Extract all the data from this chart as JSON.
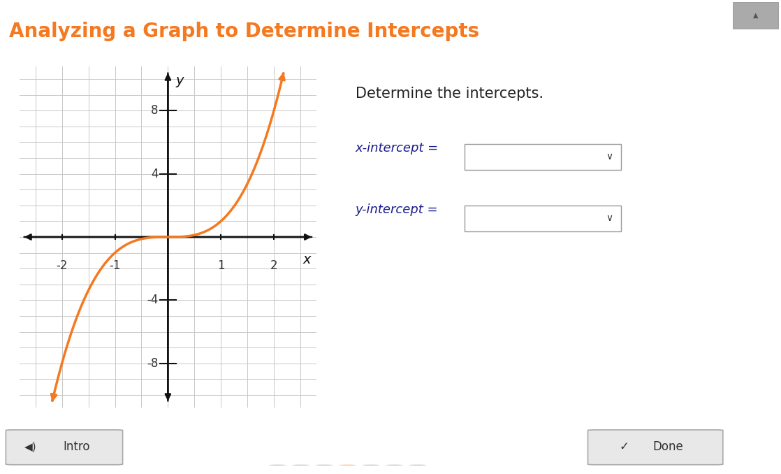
{
  "title": "Analyzing a Graph to Determine Intercepts",
  "title_color": "#F47920",
  "title_fontsize": 20,
  "title_bg": "#F5F5F5",
  "main_bg": "#FFFFFF",
  "graph_bg": "#FFFFFF",
  "grid_color": "#C8C8C8",
  "curve_color": "#F47920",
  "curve_linewidth": 2.5,
  "axis_color": "#111111",
  "tick_label_color": "#333333",
  "tick_fontsize": 12,
  "xlim": [
    -2.8,
    2.8
  ],
  "ylim": [
    -10.8,
    10.8
  ],
  "xticks": [
    -2,
    -1,
    1,
    2
  ],
  "yticks": [
    -8,
    -4,
    4,
    8
  ],
  "xlabel": "x",
  "ylabel": "y",
  "determine_text": "Determine the intercepts.",
  "x_intercept_label": "x-intercept =",
  "y_intercept_label": "y-intercept =",
  "intro_button": "Intro",
  "done_button": "Done",
  "footer_bg": "#EFEFEF",
  "button_color": "#E8E8E8",
  "button_border": "#AAAAAA",
  "scrollbar_color": "#999999",
  "scrollbar_bg": "#C8C8C8"
}
